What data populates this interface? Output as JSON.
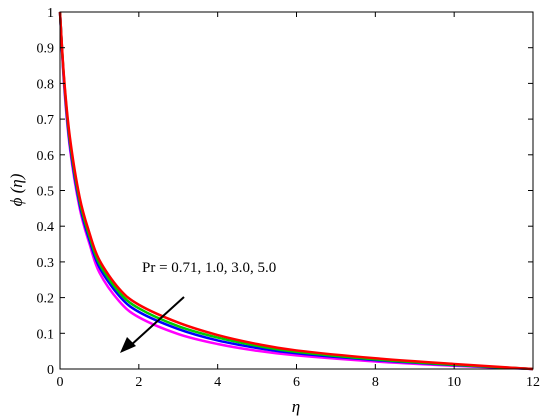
{
  "chart_data": {
    "type": "line",
    "xlabel": "η",
    "ylabel": "ϕ (η)",
    "xlim": [
      0,
      12
    ],
    "ylim": [
      0,
      1
    ],
    "x_ticks": [
      "0",
      "2",
      "4",
      "6",
      "8",
      "10",
      "12"
    ],
    "y_ticks": [
      "0",
      "0.1",
      "0.2",
      "0.3",
      "0.4",
      "0.5",
      "0.6",
      "0.7",
      "0.8",
      "0.9",
      "1"
    ],
    "grid": false,
    "annotation": "Pr = 0.71, 1.0, 3.0, 5.0",
    "x": [
      0,
      0.1,
      0.25,
      0.5,
      0.75,
      1.0,
      1.5,
      2.0,
      3.0,
      4.0,
      5.0,
      6.0,
      8.0,
      10.0,
      12.0
    ],
    "series": [
      {
        "color": "#ff0000",
        "values": [
          1.0,
          0.82,
          0.65,
          0.48,
          0.38,
          0.305,
          0.225,
          0.18,
          0.13,
          0.095,
          0.07,
          0.052,
          0.03,
          0.014,
          0.0
        ]
      },
      {
        "color": "#00cc00",
        "values": [
          1.0,
          0.815,
          0.64,
          0.47,
          0.37,
          0.295,
          0.215,
          0.17,
          0.12,
          0.088,
          0.065,
          0.048,
          0.027,
          0.012,
          0.0
        ]
      },
      {
        "color": "#0000ff",
        "values": [
          1.0,
          0.81,
          0.63,
          0.46,
          0.36,
          0.285,
          0.205,
          0.16,
          0.112,
          0.08,
          0.059,
          0.044,
          0.025,
          0.011,
          0.0
        ]
      },
      {
        "color": "#ff00ff",
        "values": [
          1.0,
          0.8,
          0.62,
          0.45,
          0.35,
          0.27,
          0.19,
          0.145,
          0.098,
          0.07,
          0.051,
          0.038,
          0.021,
          0.009,
          0.0
        ]
      }
    ]
  }
}
